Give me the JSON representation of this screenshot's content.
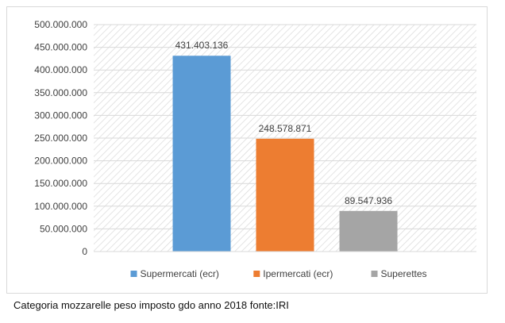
{
  "caption": "Categoria mozzarelle peso imposto gdo anno 2018 fonte:IRI",
  "chart_data": {
    "type": "bar",
    "title": "",
    "xlabel": "",
    "ylabel": "",
    "ylim": [
      0,
      500000000
    ],
    "y_ticks": [
      0,
      50000000,
      100000000,
      150000000,
      200000000,
      250000000,
      300000000,
      350000000,
      400000000,
      450000000,
      500000000
    ],
    "y_tick_labels": [
      "0",
      "50.000.000",
      "100.000.000",
      "150.000.000",
      "200.000.000",
      "250.000.000",
      "300.000.000",
      "350.000.000",
      "400.000.000",
      "450.000.000",
      "500.000.000"
    ],
    "grid": true,
    "plot_background": "hatched",
    "legend_position": "bottom",
    "series": [
      {
        "name": "Supermercati (ecr)",
        "values": [
          431403136
        ],
        "color": "#5b9bd5",
        "data_label": "431.403.136"
      },
      {
        "name": "Ipermercati (ecr)",
        "values": [
          248578871
        ],
        "color": "#ed7d31",
        "data_label": "248.578.871"
      },
      {
        "name": "Superettes",
        "values": [
          89547936
        ],
        "color": "#a5a5a5",
        "data_label": "89.547.936"
      }
    ]
  }
}
